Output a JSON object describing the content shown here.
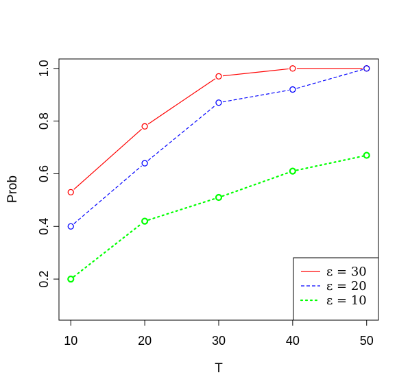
{
  "chart_data": {
    "type": "line",
    "x": [
      10,
      20,
      30,
      40,
      50
    ],
    "xlabel": "T",
    "ylabel": "Prob",
    "xlim": [
      8.4,
      51.6
    ],
    "ylim": [
      0.044,
      1.036
    ],
    "x_ticks": [
      "10",
      "20",
      "30",
      "40",
      "50"
    ],
    "y_ticks": [
      "0.2",
      "0.4",
      "0.6",
      "0.8",
      "1.0"
    ],
    "y_tick_values": [
      0.2,
      0.4,
      0.6,
      0.8,
      1.0
    ],
    "grid": false,
    "legend_position": "bottom-right",
    "series": [
      {
        "name": "ε = 30",
        "values": [
          0.53,
          0.78,
          0.97,
          1.0,
          1.0
        ],
        "color": "#ff0000",
        "line_style": "solid",
        "marker": "open-circle"
      },
      {
        "name": "ε = 20",
        "values": [
          0.4,
          0.64,
          0.87,
          0.92,
          1.0
        ],
        "color": "#0000ff",
        "line_style": "dashed",
        "marker": "open-circle"
      },
      {
        "name": "ε = 10",
        "values": [
          0.2,
          0.42,
          0.51,
          0.61,
          0.67
        ],
        "color": "#00ff00",
        "line_style": "dotted",
        "marker": "open-circle-bold"
      }
    ]
  }
}
